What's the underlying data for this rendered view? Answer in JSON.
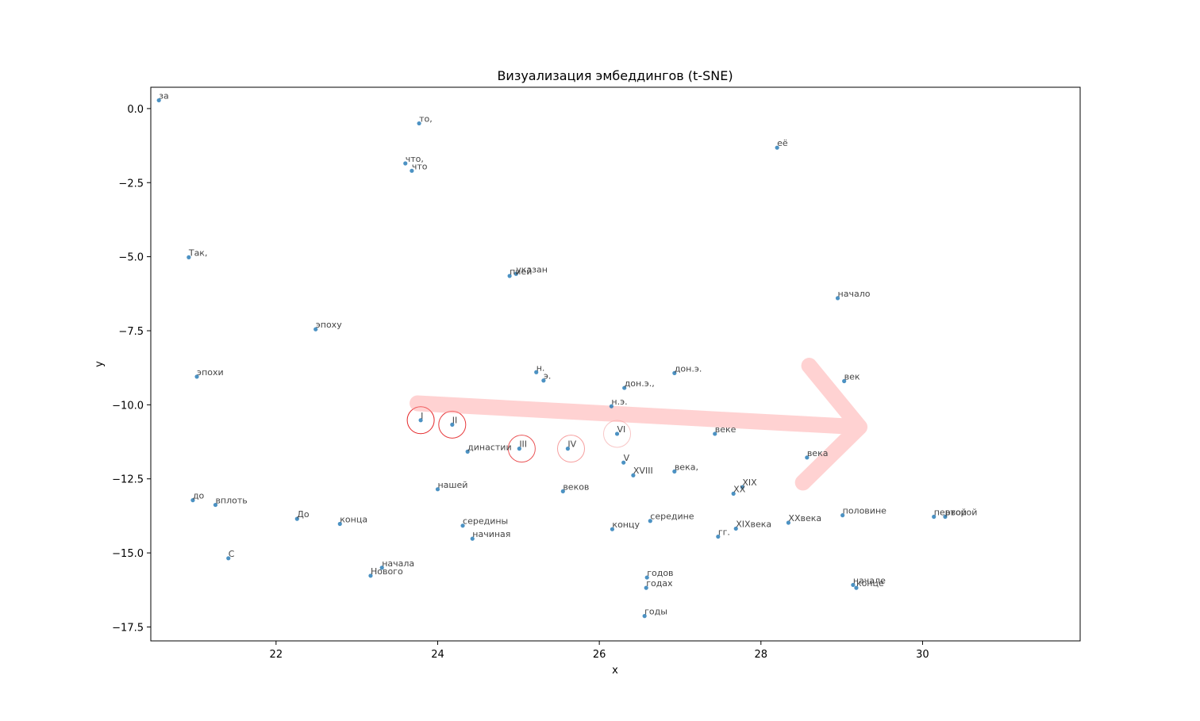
{
  "chart_data": {
    "type": "scatter",
    "title": "Визуализация эмбеддингов (t-SNE)",
    "xlabel": "x",
    "ylabel": "y",
    "xlim": [
      20.45,
      31.95
    ],
    "ylim": [
      -17.97,
      0.72
    ],
    "xticks": [
      22,
      24,
      26,
      28,
      30
    ],
    "yticks": [
      0.0,
      -2.5,
      -5.0,
      -7.5,
      -10.0,
      -12.5,
      -15.0,
      -17.5
    ],
    "xtick_labels": [
      "22",
      "24",
      "26",
      "28",
      "30"
    ],
    "ytick_labels": [
      "0.0",
      "−2.5",
      "−5.0",
      "−7.5",
      "−10.0",
      "−12.5",
      "−15.0",
      "−17.5"
    ],
    "grid": false,
    "point_color": "#1f77b4",
    "label_color": "#444444",
    "points": [
      {
        "x": 20.55,
        "y": 0.28,
        "label": "за"
      },
      {
        "x": 23.77,
        "y": -0.5,
        "label": "то,"
      },
      {
        "x": 23.6,
        "y": -1.85,
        "label": "что,"
      },
      {
        "x": 23.68,
        "y": -2.1,
        "label": "что"
      },
      {
        "x": 28.2,
        "y": -1.32,
        "label": "её"
      },
      {
        "x": 20.92,
        "y": -5.02,
        "label": "Так,"
      },
      {
        "x": 24.97,
        "y": -5.58,
        "label": "указан"
      },
      {
        "x": 24.89,
        "y": -5.65,
        "label": "пией"
      },
      {
        "x": 28.95,
        "y": -6.4,
        "label": "начало"
      },
      {
        "x": 22.49,
        "y": -7.45,
        "label": "эпоху"
      },
      {
        "x": 21.02,
        "y": -9.05,
        "label": "эпохи"
      },
      {
        "x": 25.22,
        "y": -8.9,
        "label": "н."
      },
      {
        "x": 25.31,
        "y": -9.18,
        "label": "э."
      },
      {
        "x": 26.93,
        "y": -8.93,
        "label": "дон.э."
      },
      {
        "x": 29.03,
        "y": -9.2,
        "label": "век"
      },
      {
        "x": 26.31,
        "y": -9.43,
        "label": "дон.э.,"
      },
      {
        "x": 26.15,
        "y": -10.05,
        "label": "н.э."
      },
      {
        "x": 23.79,
        "y": -10.52,
        "label": "I"
      },
      {
        "x": 24.18,
        "y": -10.67,
        "label": "II"
      },
      {
        "x": 26.22,
        "y": -10.98,
        "label": "VI"
      },
      {
        "x": 27.43,
        "y": -10.98,
        "label": "веке"
      },
      {
        "x": 24.37,
        "y": -11.58,
        "label": "династии"
      },
      {
        "x": 25.01,
        "y": -11.48,
        "label": "III"
      },
      {
        "x": 25.61,
        "y": -11.48,
        "label": "IV"
      },
      {
        "x": 28.57,
        "y": -11.78,
        "label": "века"
      },
      {
        "x": 26.3,
        "y": -11.95,
        "label": "V"
      },
      {
        "x": 26.42,
        "y": -12.38,
        "label": "XVIII"
      },
      {
        "x": 26.93,
        "y": -12.25,
        "label": "века,"
      },
      {
        "x": 27.77,
        "y": -12.78,
        "label": "XIX"
      },
      {
        "x": 27.66,
        "y": -13.0,
        "label": "XX"
      },
      {
        "x": 24.0,
        "y": -12.85,
        "label": "нашей"
      },
      {
        "x": 25.55,
        "y": -12.92,
        "label": "веков"
      },
      {
        "x": 20.97,
        "y": -13.22,
        "label": "до"
      },
      {
        "x": 21.25,
        "y": -13.38,
        "label": "вплоть"
      },
      {
        "x": 22.26,
        "y": -13.85,
        "label": "До"
      },
      {
        "x": 22.79,
        "y": -14.02,
        "label": "конца"
      },
      {
        "x": 24.31,
        "y": -14.08,
        "label": "середины"
      },
      {
        "x": 26.63,
        "y": -13.92,
        "label": "середине"
      },
      {
        "x": 26.16,
        "y": -14.2,
        "label": "концу"
      },
      {
        "x": 27.69,
        "y": -14.18,
        "label": "XIXвека"
      },
      {
        "x": 28.34,
        "y": -13.98,
        "label": "XXвека"
      },
      {
        "x": 29.01,
        "y": -13.73,
        "label": "половине"
      },
      {
        "x": 30.14,
        "y": -13.78,
        "label": "первой"
      },
      {
        "x": 30.28,
        "y": -13.78,
        "label": "второй"
      },
      {
        "x": 24.43,
        "y": -14.52,
        "label": "начиная"
      },
      {
        "x": 27.47,
        "y": -14.45,
        "label": "гг."
      },
      {
        "x": 21.41,
        "y": -15.18,
        "label": "С"
      },
      {
        "x": 23.31,
        "y": -15.5,
        "label": "начала"
      },
      {
        "x": 23.17,
        "y": -15.77,
        "label": "Нового"
      },
      {
        "x": 26.59,
        "y": -15.83,
        "label": "годов"
      },
      {
        "x": 26.58,
        "y": -16.18,
        "label": "годах"
      },
      {
        "x": 29.14,
        "y": -16.08,
        "label": "начале"
      },
      {
        "x": 29.18,
        "y": -16.18,
        "label": "конце"
      },
      {
        "x": 26.56,
        "y": -17.13,
        "label": "годы"
      }
    ],
    "highlights": [
      {
        "x": 23.79,
        "y": -10.52,
        "color": "#e31a1c",
        "opacity": 0.95
      },
      {
        "x": 24.18,
        "y": -10.67,
        "color": "#e31a1c",
        "opacity": 0.85
      },
      {
        "x": 25.04,
        "y": -11.48,
        "color": "#e31a1c",
        "opacity": 0.75
      },
      {
        "x": 25.65,
        "y": -11.48,
        "color": "#ef5050",
        "opacity": 0.55
      },
      {
        "x": 26.22,
        "y": -10.98,
        "color": "#f4a0a0",
        "opacity": 0.6
      }
    ],
    "arrow": {
      "color": "#ff9b9b",
      "opacity": 0.45,
      "from": [
        23.75,
        -9.95
      ],
      "to": [
        29.22,
        -10.75
      ]
    }
  }
}
